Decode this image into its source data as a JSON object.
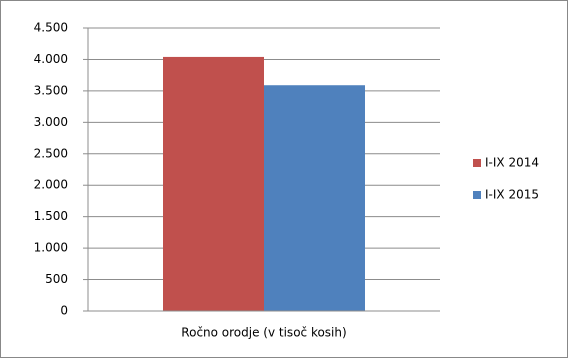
{
  "chart_data": {
    "type": "bar",
    "categories": [
      "Ročno orodje (v tisoč kosih)"
    ],
    "series": [
      {
        "name": "I-IX 2014",
        "color": "#c0504d",
        "values": [
          4040
        ]
      },
      {
        "name": "I-IX 2015",
        "color": "#4f81bd",
        "values": [
          3590
        ]
      }
    ],
    "ylim": [
      0,
      4500
    ],
    "yticks": [
      0,
      500,
      {
        "value": 1000,
        "label": "1.000"
      },
      {
        "value": 1500,
        "label": "1.500"
      },
      {
        "value": 2000,
        "label": "2.000"
      },
      {
        "value": 2500,
        "label": "2.500"
      },
      {
        "value": 3000,
        "label": "3.000"
      },
      {
        "value": 3500,
        "label": "3.500"
      },
      {
        "value": 4000,
        "label": "4.000"
      },
      {
        "value": 4500,
        "label": "4.500"
      }
    ],
    "grid": true,
    "legend": "right"
  }
}
